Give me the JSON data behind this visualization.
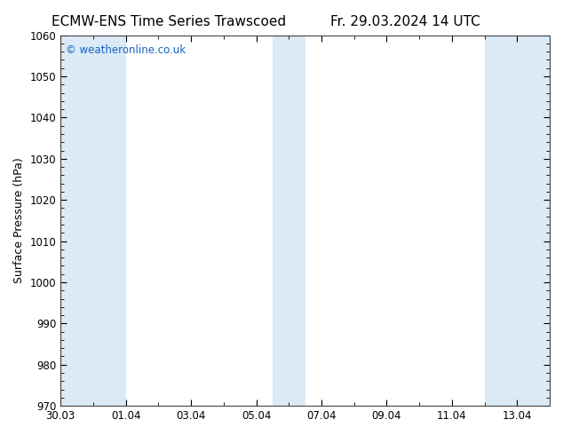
{
  "title_left": "ECMW-ENS Time Series Trawscoed",
  "title_right": "Fr. 29.03.2024 14 UTC",
  "ylabel": "Surface Pressure (hPa)",
  "ylim": [
    970,
    1060
  ],
  "yticks": [
    970,
    980,
    990,
    1000,
    1010,
    1020,
    1030,
    1040,
    1050,
    1060
  ],
  "xtick_labels": [
    "30.03",
    "01.04",
    "03.04",
    "05.04",
    "07.04",
    "09.04",
    "11.04",
    "13.04"
  ],
  "xtick_positions": [
    0,
    2,
    4,
    6,
    8,
    10,
    12,
    14
  ],
  "xlim": [
    0,
    15.0
  ],
  "shaded_bands": [
    {
      "start": 0.0,
      "end": 2.0
    },
    {
      "start": 6.5,
      "end": 7.5
    },
    {
      "start": 13.0,
      "end": 15.0
    }
  ],
  "shade_color": "#daeaf6",
  "background_color": "#ffffff",
  "watermark": "© weatheronline.co.uk",
  "watermark_color": "#1565c0",
  "title_fontsize": 11,
  "axis_label_fontsize": 9,
  "tick_fontsize": 8.5,
  "watermark_fontsize": 8.5,
  "fig_width": 6.34,
  "fig_height": 4.9,
  "dpi": 100
}
